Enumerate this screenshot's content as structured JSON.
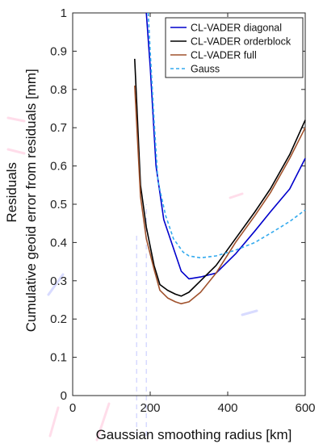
{
  "chart_data": {
    "type": "line",
    "title": "",
    "xlabel": "Gaussian smoothing radius [km]",
    "ylabel": "Cumulative geoid error from residuals [mm]",
    "ylabel_prefix": "Residuals",
    "xlim": [
      0,
      600
    ],
    "ylim": [
      0,
      1
    ],
    "xticks": [
      0,
      200,
      400,
      600
    ],
    "yticks": [
      0,
      0.1,
      0.2,
      0.3,
      0.4,
      0.5,
      0.6,
      0.7,
      0.8,
      0.9,
      1
    ],
    "ytick_labels": [
      "0",
      "0.1",
      "0.2",
      "0.3",
      "0.4",
      "0.5",
      "0.6",
      "0.7",
      "0.8",
      "0.9",
      "1"
    ],
    "grid": false,
    "legend_position": "top-right",
    "series": [
      {
        "name": "CL-VADER diagonal",
        "color": "#0000cc",
        "dash": "solid",
        "x": [
          190,
          200,
          215,
          235,
          255,
          280,
          300,
          330,
          370,
          420,
          470,
          510,
          560,
          600
        ],
        "y": [
          1.0,
          0.86,
          0.6,
          0.46,
          0.4,
          0.325,
          0.305,
          0.31,
          0.32,
          0.37,
          0.43,
          0.48,
          0.54,
          0.62
        ]
      },
      {
        "name": "CL-VADER orderblock",
        "color": "#000000",
        "dash": "solid",
        "x": [
          160,
          175,
          190,
          210,
          225,
          245,
          265,
          280,
          300,
          330,
          370,
          420,
          470,
          510,
          560,
          600
        ],
        "y": [
          0.88,
          0.55,
          0.44,
          0.34,
          0.29,
          0.275,
          0.265,
          0.26,
          0.27,
          0.3,
          0.34,
          0.41,
          0.48,
          0.54,
          0.63,
          0.72
        ]
      },
      {
        "name": "CL-VADER full",
        "color": "#a0522d",
        "dash": "solid",
        "x": [
          160,
          175,
          190,
          210,
          225,
          245,
          265,
          280,
          300,
          330,
          370,
          420,
          470,
          510,
          560,
          600
        ],
        "y": [
          0.81,
          0.52,
          0.41,
          0.33,
          0.275,
          0.255,
          0.245,
          0.24,
          0.245,
          0.27,
          0.32,
          0.4,
          0.47,
          0.53,
          0.62,
          0.7
        ]
      },
      {
        "name": "Gauss",
        "color": "#33aaee",
        "dash": "dashed",
        "x": [
          195,
          200,
          210,
          220,
          240,
          260,
          285,
          300,
          330,
          370,
          420,
          470,
          520,
          560,
          600
        ],
        "y": [
          1.0,
          0.9,
          0.72,
          0.56,
          0.47,
          0.41,
          0.375,
          0.365,
          0.36,
          0.365,
          0.38,
          0.4,
          0.43,
          0.455,
          0.485
        ]
      }
    ],
    "background_artifacts": {
      "color": "#ffd0e2",
      "note_series_color": "#c8ccff"
    }
  }
}
